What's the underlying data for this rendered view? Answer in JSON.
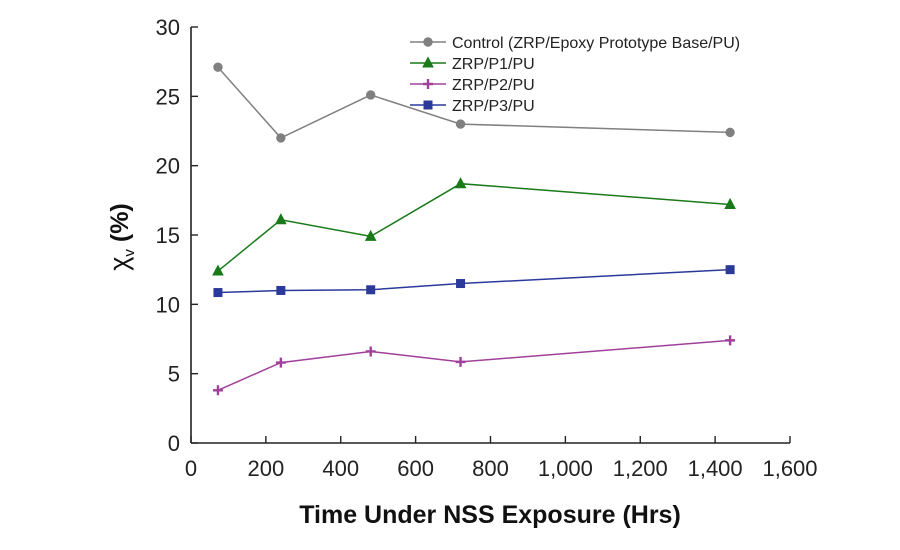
{
  "chart_data": {
    "type": "line",
    "title": "",
    "xlabel": "Time Under NSS Exposure (Hrs)",
    "ylabel": "χ",
    "ylabel_sub": "v",
    "ylabel_unit": "(%)",
    "xlim": [
      0,
      1600
    ],
    "ylim": [
      0,
      30
    ],
    "x_ticks": [
      0,
      200,
      400,
      600,
      800,
      1000,
      1200,
      1400,
      1600
    ],
    "x_tick_labels": [
      "0",
      "200",
      "400",
      "600",
      "800",
      "1,000",
      "1,200",
      "1,400",
      "1,600"
    ],
    "y_ticks": [
      0,
      5,
      10,
      15,
      20,
      25,
      30
    ],
    "y_tick_labels": [
      "0",
      "5",
      "10",
      "15",
      "20",
      "25",
      "30"
    ],
    "grid": false,
    "legend_position": "top-right",
    "series": [
      {
        "name": "Control (ZRP/Epoxy Prototype Base/PU)",
        "color": "#808080",
        "marker": "circle",
        "x": [
          72,
          240,
          480,
          720,
          1440
        ],
        "values": [
          27.1,
          22.0,
          25.1,
          23.0,
          22.4
        ]
      },
      {
        "name": "ZRP/P1/PU",
        "color": "#1a7a1a",
        "marker": "triangle",
        "x": [
          72,
          240,
          480,
          720,
          1440
        ],
        "values": [
          12.4,
          16.1,
          14.9,
          18.7,
          17.2
        ]
      },
      {
        "name": "ZRP/P2/PU",
        "color": "#a0409a",
        "marker": "plus",
        "x": [
          72,
          240,
          480,
          720,
          1440
        ],
        "values": [
          3.8,
          5.8,
          6.6,
          5.85,
          7.4
        ]
      },
      {
        "name": "ZRP/P3/PU",
        "color": "#2b3a9a",
        "marker": "square",
        "x": [
          72,
          240,
          480,
          720,
          1440
        ],
        "values": [
          10.85,
          11.0,
          11.05,
          11.5,
          12.5
        ]
      }
    ]
  }
}
